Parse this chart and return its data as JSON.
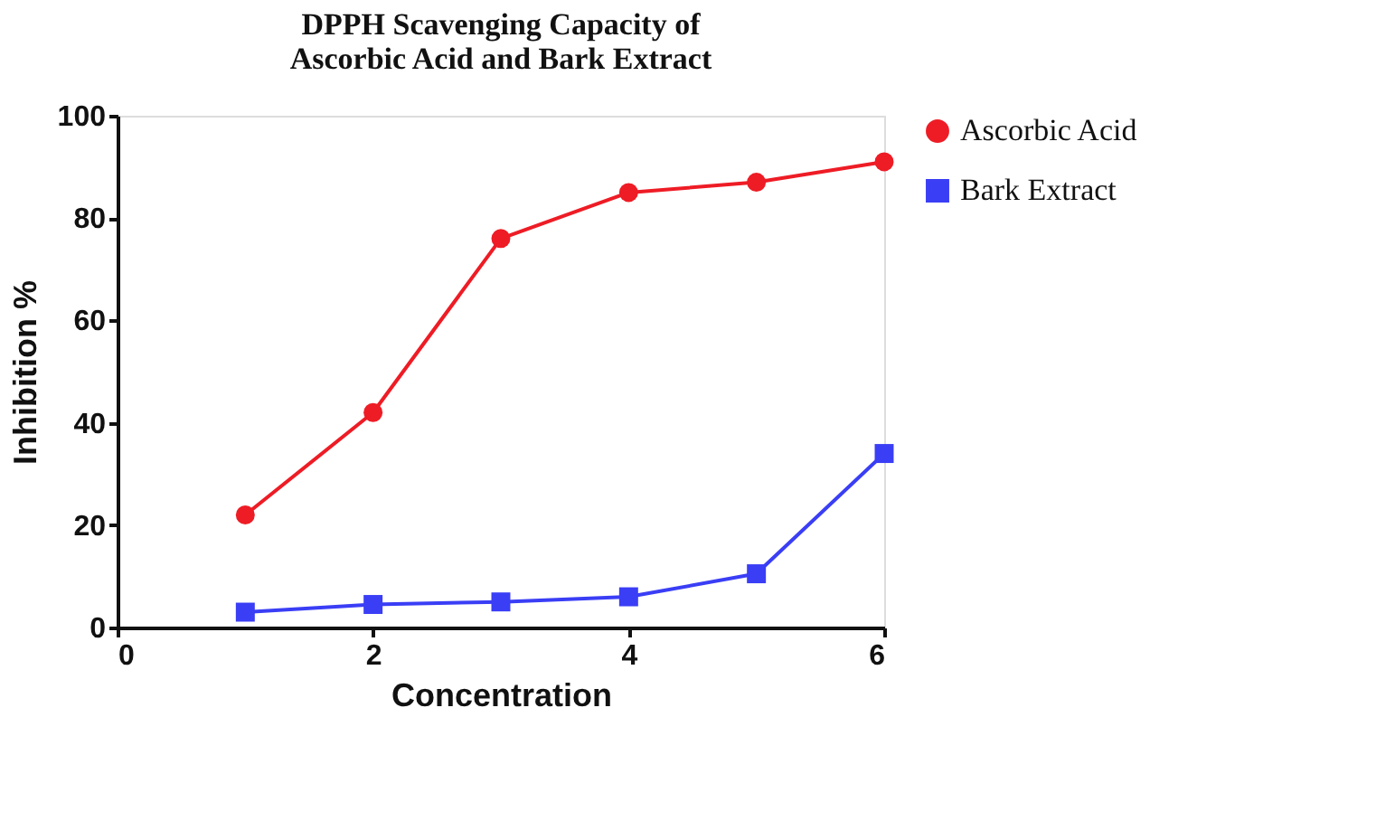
{
  "chart_data": {
    "type": "line",
    "title": [
      "DPPH Scavenging Capacity of",
      "Ascorbic Acid and  Bark Extract"
    ],
    "xlabel": "Concentration",
    "ylabel": "Inhibition %",
    "x": [
      1,
      2,
      3,
      4,
      5,
      6
    ],
    "xlim": [
      0,
      6
    ],
    "xticks": [
      0,
      2,
      4,
      6
    ],
    "ylim": [
      0,
      100
    ],
    "yticks": [
      0,
      20,
      40,
      60,
      80,
      100
    ],
    "grid": false,
    "legend": "right",
    "line_style": "solid",
    "series": [
      {
        "name": "Ascorbic Acid",
        "color": "#ee1c25",
        "marker": "circle",
        "values": [
          22,
          42,
          76,
          85,
          87,
          91
        ]
      },
      {
        "name": "Bark Extract",
        "color": "#3a3ef5",
        "marker": "square",
        "values": [
          3,
          4.5,
          5,
          6,
          10.5,
          34
        ]
      }
    ]
  }
}
